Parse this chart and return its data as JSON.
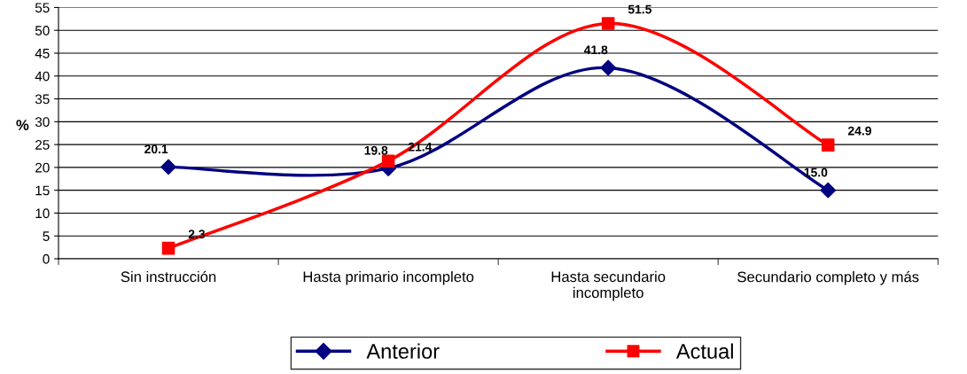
{
  "chart_data": {
    "type": "line",
    "ylabel": "%",
    "categories": [
      "Sin instrucción",
      "Hasta primario incompleto",
      "Hasta secundario\nincompleto",
      "Secundario completo y más"
    ],
    "series": [
      {
        "name": "Anterior",
        "color": "#000080",
        "marker": "diamond",
        "values": [
          20.1,
          19.8,
          41.8,
          15.0
        ],
        "value_labels": [
          "20.1",
          "19.8",
          "41.8",
          "15.0"
        ]
      },
      {
        "name": "Actual",
        "color": "#ff0000",
        "marker": "square",
        "values": [
          2.3,
          21.4,
          51.5,
          24.9
        ],
        "value_labels": [
          "2.3",
          "21.4",
          "51.5",
          "24.9"
        ]
      }
    ],
    "ylim": [
      0,
      55
    ],
    "yticks": [
      0,
      5,
      10,
      15,
      20,
      25,
      30,
      35,
      40,
      45,
      50,
      55
    ],
    "grid": "y",
    "legend": "bottom",
    "line_style": "solid"
  }
}
